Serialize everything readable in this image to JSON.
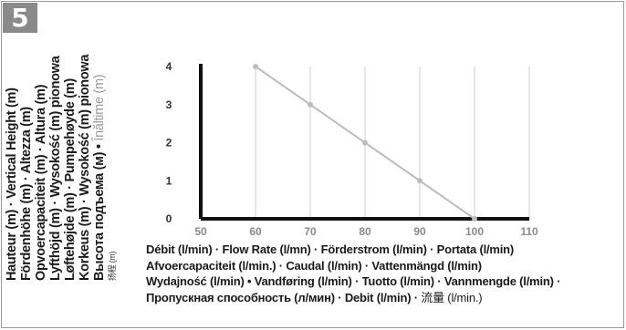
{
  "badge": "5",
  "y_labels": {
    "l1": "Hauteur (m) · Vertical Height (m)",
    "l2": "Fördenhöhe (m) · Altezza (m)",
    "l3": "Opvoercapaciteit (m) · Altura (m)",
    "l4": "Lyfthöjd (m) · Wysokość (m) pionowa",
    "l5": "Løftehøjde (m) · Pumpehøyde (m)",
    "l6": "Korkeus (m) · Wysokość (m) pionowa",
    "l7_main": "Высота подъема (м) •",
    "l7_gray": "Înăltime (m)",
    "l8": "扬程 (m)"
  },
  "x_labels": {
    "l1": "Débit (l/min) · Flow Rate (l/mn) · Förderstrom (l/min) · Portata (l/min)",
    "l2": "Afvoercapaciteit (l/min.) · Caudal (l/min) · Vattenmängd (l/min)",
    "l3": "Wydajność (l/min) • Vandføring (l/min) · Tuotto (l/min) · Vannmengde (l/min) ·",
    "l4_main": "Пропускная способность (л/мин) · Debit (l/min) ·",
    "l4_light": "流量 (l/min.)"
  },
  "chart_data": {
    "type": "line",
    "x": [
      60,
      70,
      80,
      90,
      100
    ],
    "series": [
      {
        "values": [
          4,
          3,
          2,
          1,
          0
        ]
      }
    ],
    "xticks": [
      "50",
      "60",
      "70",
      "80",
      "90",
      "100",
      "110"
    ],
    "yticks": [
      "0",
      "1",
      "2",
      "3",
      "4"
    ],
    "xlim": [
      50,
      110
    ],
    "ylim": [
      0,
      4
    ],
    "grid": true,
    "colors": {
      "line": "#bdbdbd",
      "marker": "#bdbdbd",
      "tick": "#8a8a8a",
      "axis": "#111111",
      "grid": "#cfcfcf"
    }
  }
}
